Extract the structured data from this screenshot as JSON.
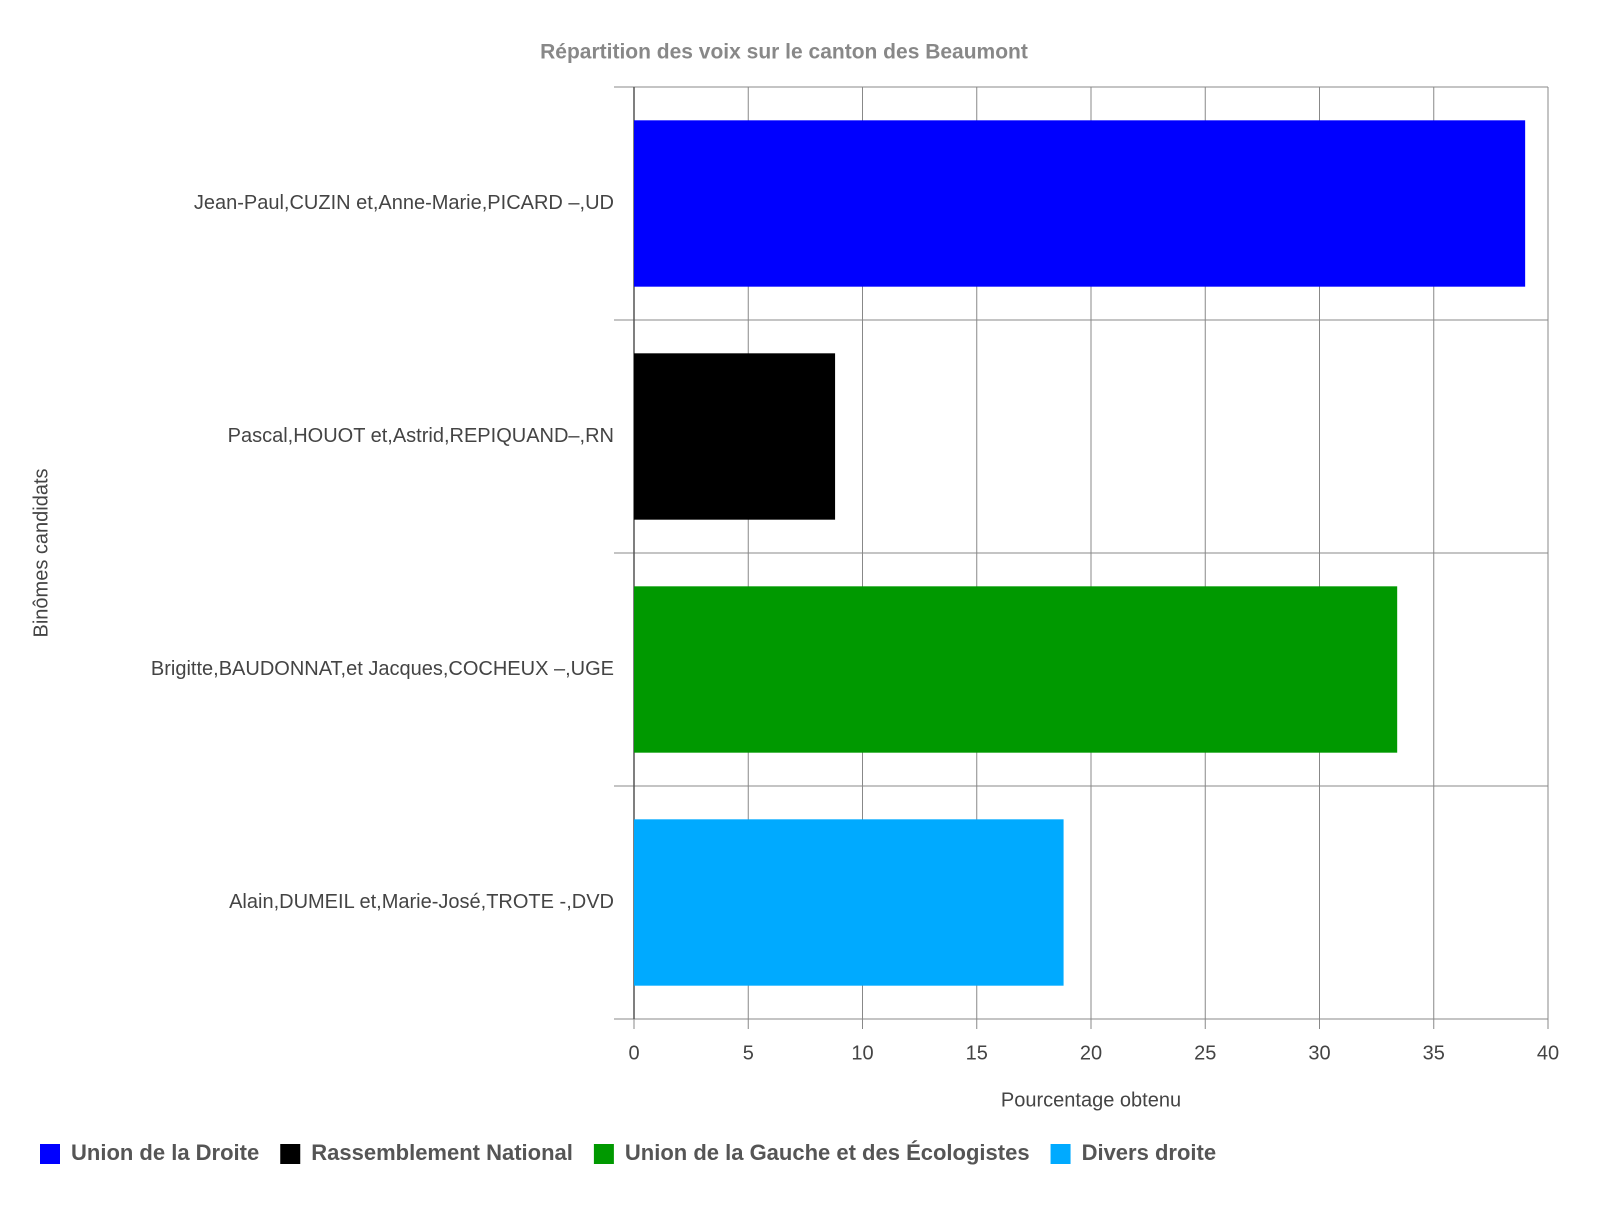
{
  "chart_data": {
    "type": "hbar",
    "title": "Répartition des voix sur le canton des Beaumont",
    "x_label": "Pourcentage obtenu",
    "y_label": "Binômes candidats",
    "categories": [
      "Jean-Paul,CUZIN et,Anne-Marie,PICARD –,UD",
      "Pascal,HOUOT et,Astrid,REPIQUAND–,RN",
      "Brigitte,BAUDONNAT,et Jacques,COCHEUX –,UGE",
      "Alain,DUMEIL et,Marie-José,TROTE -,DVD"
    ],
    "series": [
      {
        "name": "Union de la Droite",
        "color": "#0000ff",
        "values": [
          39.0,
          null,
          null,
          null
        ]
      },
      {
        "name": "Rassemblement National",
        "color": "#000000",
        "values": [
          null,
          8.8,
          null,
          null
        ]
      },
      {
        "name": "Union de la Gauche et des Écologistes",
        "color": "#009900",
        "values": [
          null,
          null,
          33.4,
          null
        ]
      },
      {
        "name": "Divers droite",
        "color": "#00aaff",
        "values": [
          null,
          null,
          null,
          18.8
        ]
      }
    ],
    "xlim": [
      0,
      40
    ],
    "xticks": [
      0,
      5,
      10,
      15,
      20,
      25,
      30,
      35,
      40
    ],
    "grid": true,
    "legend": "bottom-left"
  }
}
